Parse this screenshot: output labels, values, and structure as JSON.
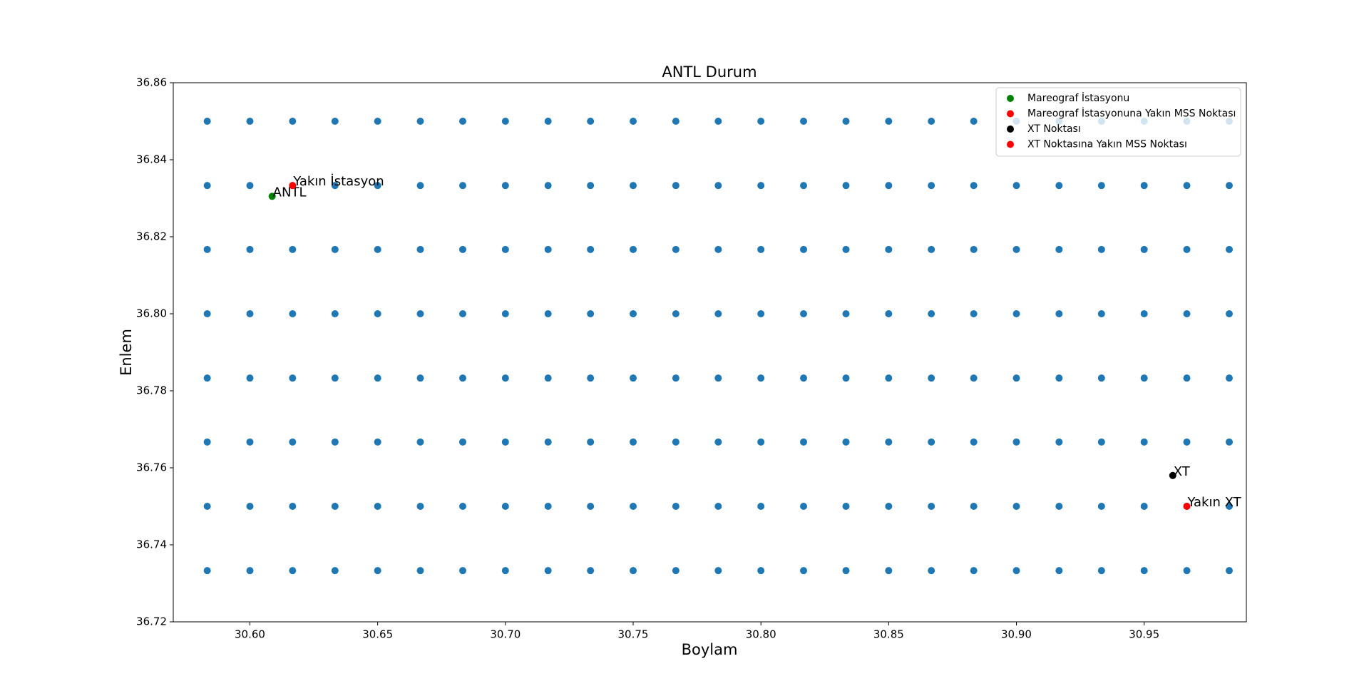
{
  "chart_data": {
    "type": "scatter",
    "title": "ANTL Durum",
    "x_label": "Boylam",
    "y_label": "Enlem",
    "xlim": [
      30.57,
      30.99
    ],
    "ylim": [
      36.72,
      36.86
    ],
    "xticks": [
      {
        "value": 30.6,
        "label": "30.60"
      },
      30.65,
      {
        "value": 30.7,
        "label": "30.70"
      },
      30.75,
      {
        "value": 30.8,
        "label": "30.80"
      },
      30.85,
      {
        "value": 30.9,
        "label": "30.90"
      },
      30.95
    ],
    "yticks": [
      36.72,
      36.74,
      36.76,
      36.78,
      {
        "value": 36.8,
        "label": "36.80"
      },
      36.82,
      36.84,
      36.86
    ],
    "legend": "upper right",
    "series": [
      {
        "color": "#1f77b4",
        "x": [
          30.5833,
          30.6,
          30.6167,
          30.6333,
          30.65,
          30.6667,
          30.6833,
          30.7,
          30.7167,
          30.7333,
          30.75,
          30.7667,
          30.7833,
          30.8,
          30.8167,
          30.8333,
          30.85,
          30.8667,
          30.8833,
          30.9,
          30.9167,
          30.9333,
          30.95,
          30.9667,
          30.9833,
          30.5833,
          30.6,
          30.6167,
          30.6333,
          30.65,
          30.6667,
          30.6833,
          30.7,
          30.7167,
          30.7333,
          30.75,
          30.7667,
          30.7833,
          30.8,
          30.8167,
          30.8333,
          30.85,
          30.8667,
          30.8833,
          30.9,
          30.9167,
          30.9333,
          30.95,
          30.9667,
          30.9833,
          30.5833,
          30.6,
          30.6167,
          30.6333,
          30.65,
          30.6667,
          30.6833,
          30.7,
          30.7167,
          30.7333,
          30.75,
          30.7667,
          30.7833,
          30.8,
          30.8167,
          30.8333,
          30.85,
          30.8667,
          30.8833,
          30.9,
          30.9167,
          30.9333,
          30.95,
          30.9667,
          30.9833,
          30.5833,
          30.6,
          30.6167,
          30.6333,
          30.65,
          30.6667,
          30.6833,
          30.7,
          30.7167,
          30.7333,
          30.75,
          30.7667,
          30.7833,
          30.8,
          30.8167,
          30.8333,
          30.85,
          30.8667,
          30.8833,
          30.9,
          30.9167,
          30.9333,
          30.95,
          30.9667,
          30.9833,
          30.5833,
          30.6,
          30.6167,
          30.6333,
          30.65,
          30.6667,
          30.6833,
          30.7,
          30.7167,
          30.7333,
          30.75,
          30.7667,
          30.7833,
          30.8,
          30.8167,
          30.8333,
          30.85,
          30.8667,
          30.8833,
          30.9,
          30.9167,
          30.9333,
          30.95,
          30.9667,
          30.9833,
          30.5833,
          30.6,
          30.6167,
          30.6333,
          30.65,
          30.6667,
          30.6833,
          30.7,
          30.7167,
          30.7333,
          30.75,
          30.7667,
          30.7833,
          30.8,
          30.8167,
          30.8333,
          30.85,
          30.8667,
          30.8833,
          30.9,
          30.9167,
          30.9333,
          30.95,
          30.9667,
          30.9833,
          30.5833,
          30.6,
          30.6167,
          30.6333,
          30.65,
          30.6667,
          30.6833,
          30.7,
          30.7167,
          30.7333,
          30.75,
          30.7667,
          30.7833,
          30.8,
          30.8167,
          30.8333,
          30.85,
          30.8667,
          30.8833,
          30.9,
          30.9167,
          30.9333,
          30.95,
          30.9667,
          30.9833,
          30.5833,
          30.6,
          30.6167,
          30.6333,
          30.65,
          30.6667,
          30.6833,
          30.7,
          30.7167,
          30.7333,
          30.75,
          30.7667,
          30.7833,
          30.8,
          30.8167,
          30.8333,
          30.85,
          30.8667,
          30.8833,
          30.9,
          30.9167,
          30.9333,
          30.95,
          30.9667,
          30.9833
        ],
        "y": [
          36.85,
          36.85,
          36.85,
          36.85,
          36.85,
          36.85,
          36.85,
          36.85,
          36.85,
          36.85,
          36.85,
          36.85,
          36.85,
          36.85,
          36.85,
          36.85,
          36.85,
          36.85,
          36.85,
          36.85,
          36.85,
          36.85,
          36.85,
          36.85,
          36.85,
          36.8333,
          36.8333,
          36.8333,
          36.8333,
          36.8333,
          36.8333,
          36.8333,
          36.8333,
          36.8333,
          36.8333,
          36.8333,
          36.8333,
          36.8333,
          36.8333,
          36.8333,
          36.8333,
          36.8333,
          36.8333,
          36.8333,
          36.8333,
          36.8333,
          36.8333,
          36.8333,
          36.8333,
          36.8333,
          36.8167,
          36.8167,
          36.8167,
          36.8167,
          36.8167,
          36.8167,
          36.8167,
          36.8167,
          36.8167,
          36.8167,
          36.8167,
          36.8167,
          36.8167,
          36.8167,
          36.8167,
          36.8167,
          36.8167,
          36.8167,
          36.8167,
          36.8167,
          36.8167,
          36.8167,
          36.8167,
          36.8167,
          36.8167,
          36.8,
          36.8,
          36.8,
          36.8,
          36.8,
          36.8,
          36.8,
          36.8,
          36.8,
          36.8,
          36.8,
          36.8,
          36.8,
          36.8,
          36.8,
          36.8,
          36.8,
          36.8,
          36.8,
          36.8,
          36.8,
          36.8,
          36.8,
          36.8,
          36.8,
          36.7833,
          36.7833,
          36.7833,
          36.7833,
          36.7833,
          36.7833,
          36.7833,
          36.7833,
          36.7833,
          36.7833,
          36.7833,
          36.7833,
          36.7833,
          36.7833,
          36.7833,
          36.7833,
          36.7833,
          36.7833,
          36.7833,
          36.7833,
          36.7833,
          36.7833,
          36.7833,
          36.7833,
          36.7833,
          36.7667,
          36.7667,
          36.7667,
          36.7667,
          36.7667,
          36.7667,
          36.7667,
          36.7667,
          36.7667,
          36.7667,
          36.7667,
          36.7667,
          36.7667,
          36.7667,
          36.7667,
          36.7667,
          36.7667,
          36.7667,
          36.7667,
          36.7667,
          36.7667,
          36.7667,
          36.7667,
          36.7667,
          36.7667,
          36.75,
          36.75,
          36.75,
          36.75,
          36.75,
          36.75,
          36.75,
          36.75,
          36.75,
          36.75,
          36.75,
          36.75,
          36.75,
          36.75,
          36.75,
          36.75,
          36.75,
          36.75,
          36.75,
          36.75,
          36.75,
          36.75,
          36.75,
          36.75,
          36.75,
          36.7333,
          36.7333,
          36.7333,
          36.7333,
          36.7333,
          36.7333,
          36.7333,
          36.7333,
          36.7333,
          36.7333,
          36.7333,
          36.7333,
          36.7333,
          36.7333,
          36.7333,
          36.7333,
          36.7333,
          36.7333,
          36.7333,
          36.7333,
          36.7333,
          36.7333,
          36.7333,
          36.7333,
          36.7333
        ]
      },
      {
        "name": "Mareograf İstasyonu",
        "color": "green",
        "x": [
          30.6087
        ],
        "y": [
          36.8305
        ],
        "point_labels": [
          "ANTL"
        ]
      },
      {
        "name": "Mareograf İstasyonuna Yakın MSS Noktası",
        "color": "red",
        "x": [
          30.6167
        ],
        "y": [
          36.8333
        ],
        "point_labels": [
          "Yakın İstasyon"
        ]
      },
      {
        "name": "XT Noktası",
        "color": "black",
        "x": [
          30.9612
        ],
        "y": [
          36.758
        ],
        "point_labels": [
          "XT"
        ]
      },
      {
        "name": "XT Noktasına Yakın MSS Noktası",
        "color": "red",
        "x": [
          30.9667
        ],
        "y": [
          36.75
        ],
        "point_labels": [
          "Yakın XT"
        ]
      }
    ]
  }
}
